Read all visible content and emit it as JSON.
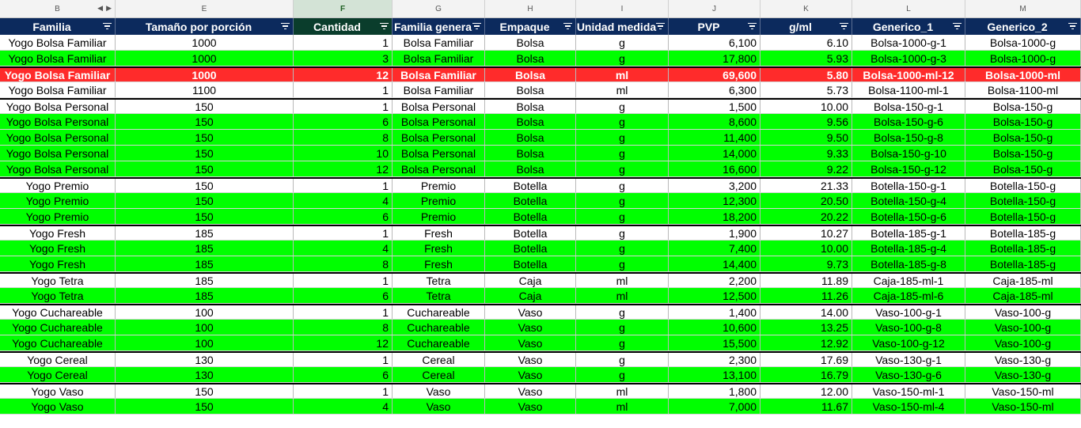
{
  "column_letters": [
    "B",
    "E",
    "F",
    "G",
    "H",
    "I",
    "J",
    "K",
    "L",
    "M"
  ],
  "selected_column": "F",
  "headers": [
    "Familia",
    "Tamaño por porción",
    "Cantidad",
    "Familia genera",
    "Empaque",
    "Unidad medida",
    "PVP",
    "g/ml",
    "Generico_1",
    "Generico_2"
  ],
  "colors": {
    "header_bg": "#0c2a5d",
    "green_row": "#00ff00",
    "highlight_row": "#ff2b2b",
    "white_row": "#ffffff",
    "group_separator": "#000000"
  },
  "rows": [
    {
      "style": "white",
      "group_start": false,
      "cells": [
        "Yogo Bolsa Familiar",
        "1000",
        "1",
        "Bolsa Familiar",
        "Bolsa",
        "g",
        "6,100",
        "6.10",
        "Bolsa-1000-g-1",
        "Bolsa-1000-g"
      ]
    },
    {
      "style": "green",
      "group_start": false,
      "cells": [
        "Yogo Bolsa Familiar",
        "1000",
        "3",
        "Bolsa Familiar",
        "Bolsa",
        "g",
        "17,800",
        "5.93",
        "Bolsa-1000-g-3",
        "Bolsa-1000-g"
      ]
    },
    {
      "style": "red",
      "group_start": true,
      "cells": [
        "Yogo Bolsa Familiar",
        "1000",
        "12",
        "Bolsa Familiar",
        "Bolsa",
        "ml",
        "69,600",
        "5.80",
        "Bolsa-1000-ml-12",
        "Bolsa-1000-ml"
      ]
    },
    {
      "style": "white",
      "group_start": false,
      "cells": [
        "Yogo Bolsa Familiar",
        "1100",
        "1",
        "Bolsa Familiar",
        "Bolsa",
        "ml",
        "6,300",
        "5.73",
        "Bolsa-1100-ml-1",
        "Bolsa-1100-ml"
      ]
    },
    {
      "style": "white",
      "group_start": true,
      "cells": [
        "Yogo Bolsa Personal",
        "150",
        "1",
        "Bolsa Personal",
        "Bolsa",
        "g",
        "1,500",
        "10.00",
        "Bolsa-150-g-1",
        "Bolsa-150-g"
      ]
    },
    {
      "style": "green",
      "group_start": false,
      "cells": [
        "Yogo Bolsa Personal",
        "150",
        "6",
        "Bolsa Personal",
        "Bolsa",
        "g",
        "8,600",
        "9.56",
        "Bolsa-150-g-6",
        "Bolsa-150-g"
      ]
    },
    {
      "style": "green",
      "group_start": false,
      "cells": [
        "Yogo Bolsa Personal",
        "150",
        "8",
        "Bolsa Personal",
        "Bolsa",
        "g",
        "11,400",
        "9.50",
        "Bolsa-150-g-8",
        "Bolsa-150-g"
      ]
    },
    {
      "style": "green",
      "group_start": false,
      "cells": [
        "Yogo Bolsa Personal",
        "150",
        "10",
        "Bolsa Personal",
        "Bolsa",
        "g",
        "14,000",
        "9.33",
        "Bolsa-150-g-10",
        "Bolsa-150-g"
      ]
    },
    {
      "style": "green",
      "group_start": false,
      "cells": [
        "Yogo Bolsa Personal",
        "150",
        "12",
        "Bolsa Personal",
        "Bolsa",
        "g",
        "16,600",
        "9.22",
        "Bolsa-150-g-12",
        "Bolsa-150-g"
      ]
    },
    {
      "style": "white",
      "group_start": true,
      "cells": [
        "Yogo Premio",
        "150",
        "1",
        "Premio",
        "Botella",
        "g",
        "3,200",
        "21.33",
        "Botella-150-g-1",
        "Botella-150-g"
      ]
    },
    {
      "style": "green",
      "group_start": false,
      "cells": [
        "Yogo Premio",
        "150",
        "4",
        "Premio",
        "Botella",
        "g",
        "12,300",
        "20.50",
        "Botella-150-g-4",
        "Botella-150-g"
      ]
    },
    {
      "style": "green",
      "group_start": false,
      "cells": [
        "Yogo Premio",
        "150",
        "6",
        "Premio",
        "Botella",
        "g",
        "18,200",
        "20.22",
        "Botella-150-g-6",
        "Botella-150-g"
      ]
    },
    {
      "style": "white",
      "group_start": true,
      "cells": [
        "Yogo Fresh",
        "185",
        "1",
        "Fresh",
        "Botella",
        "g",
        "1,900",
        "10.27",
        "Botella-185-g-1",
        "Botella-185-g"
      ]
    },
    {
      "style": "green",
      "group_start": false,
      "cells": [
        "Yogo Fresh",
        "185",
        "4",
        "Fresh",
        "Botella",
        "g",
        "7,400",
        "10.00",
        "Botella-185-g-4",
        "Botella-185-g"
      ]
    },
    {
      "style": "green",
      "group_start": false,
      "cells": [
        "Yogo Fresh",
        "185",
        "8",
        "Fresh",
        "Botella",
        "g",
        "14,400",
        "9.73",
        "Botella-185-g-8",
        "Botella-185-g"
      ]
    },
    {
      "style": "white",
      "group_start": true,
      "cells": [
        "Yogo Tetra",
        "185",
        "1",
        "Tetra",
        "Caja",
        "ml",
        "2,200",
        "11.89",
        "Caja-185-ml-1",
        "Caja-185-ml"
      ]
    },
    {
      "style": "green",
      "group_start": false,
      "cells": [
        "Yogo Tetra",
        "185",
        "6",
        "Tetra",
        "Caja",
        "ml",
        "12,500",
        "11.26",
        "Caja-185-ml-6",
        "Caja-185-ml"
      ]
    },
    {
      "style": "white",
      "group_start": true,
      "cells": [
        "Yogo Cuchareable",
        "100",
        "1",
        "Cuchareable",
        "Vaso",
        "g",
        "1,400",
        "14.00",
        "Vaso-100-g-1",
        "Vaso-100-g"
      ]
    },
    {
      "style": "green",
      "group_start": false,
      "cells": [
        "Yogo Cuchareable",
        "100",
        "8",
        "Cuchareable",
        "Vaso",
        "g",
        "10,600",
        "13.25",
        "Vaso-100-g-8",
        "Vaso-100-g"
      ]
    },
    {
      "style": "green",
      "group_start": false,
      "cells": [
        "Yogo Cuchareable",
        "100",
        "12",
        "Cuchareable",
        "Vaso",
        "g",
        "15,500",
        "12.92",
        "Vaso-100-g-12",
        "Vaso-100-g"
      ]
    },
    {
      "style": "white",
      "group_start": true,
      "cells": [
        "Yogo Cereal",
        "130",
        "1",
        "Cereal",
        "Vaso",
        "g",
        "2,300",
        "17.69",
        "Vaso-130-g-1",
        "Vaso-130-g"
      ]
    },
    {
      "style": "green",
      "group_start": false,
      "cells": [
        "Yogo Cereal",
        "130",
        "6",
        "Cereal",
        "Vaso",
        "g",
        "13,100",
        "16.79",
        "Vaso-130-g-6",
        "Vaso-130-g"
      ]
    },
    {
      "style": "white",
      "group_start": true,
      "cells": [
        "Yogo Vaso",
        "150",
        "1",
        "Vaso",
        "Vaso",
        "ml",
        "1,800",
        "12.00",
        "Vaso-150-ml-1",
        "Vaso-150-ml"
      ]
    },
    {
      "style": "green",
      "group_start": false,
      "cells": [
        "Yogo Vaso",
        "150",
        "4",
        "Vaso",
        "Vaso",
        "ml",
        "7,000",
        "11.67",
        "Vaso-150-ml-4",
        "Vaso-150-ml"
      ]
    }
  ]
}
